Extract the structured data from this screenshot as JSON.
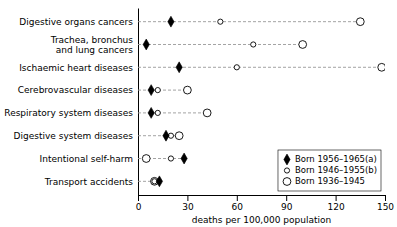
{
  "chart_data": {
    "type": "dot",
    "orientation": "horizontal",
    "categories": [
      "Digestive organs cancers",
      "Trachea, bronchus\nand lung cancers",
      "Ischaemic heart diseases",
      "Cerebrovascular diseases",
      "Respiratory system diseases",
      "Digestive system diseases",
      "Intentional self-harm",
      "Transport accidents"
    ],
    "series": [
      {
        "name": "Born 1956–1965(a)",
        "color": "#000000",
        "marker": "diamond",
        "values": [
          20,
          5,
          25,
          8,
          8,
          17,
          28,
          13
        ]
      },
      {
        "name": "Born 1946–1955(b)",
        "color": "#000000",
        "marker": "circle-open",
        "values": [
          50,
          70,
          60,
          12,
          12,
          20,
          20,
          10
        ]
      },
      {
        "name": "Born 1936–1945",
        "color": "#000000",
        "marker": "circle-open",
        "values": [
          135,
          100,
          148,
          30,
          42,
          25,
          5,
          10
        ]
      }
    ],
    "xlabel": "deaths per 100,000 population",
    "xlim": [
      0,
      150
    ],
    "xticks": [
      0,
      30,
      60,
      90,
      120,
      150
    ],
    "color": "#999999",
    "line_style": "dashed",
    "legend": "lower-right"
  }
}
